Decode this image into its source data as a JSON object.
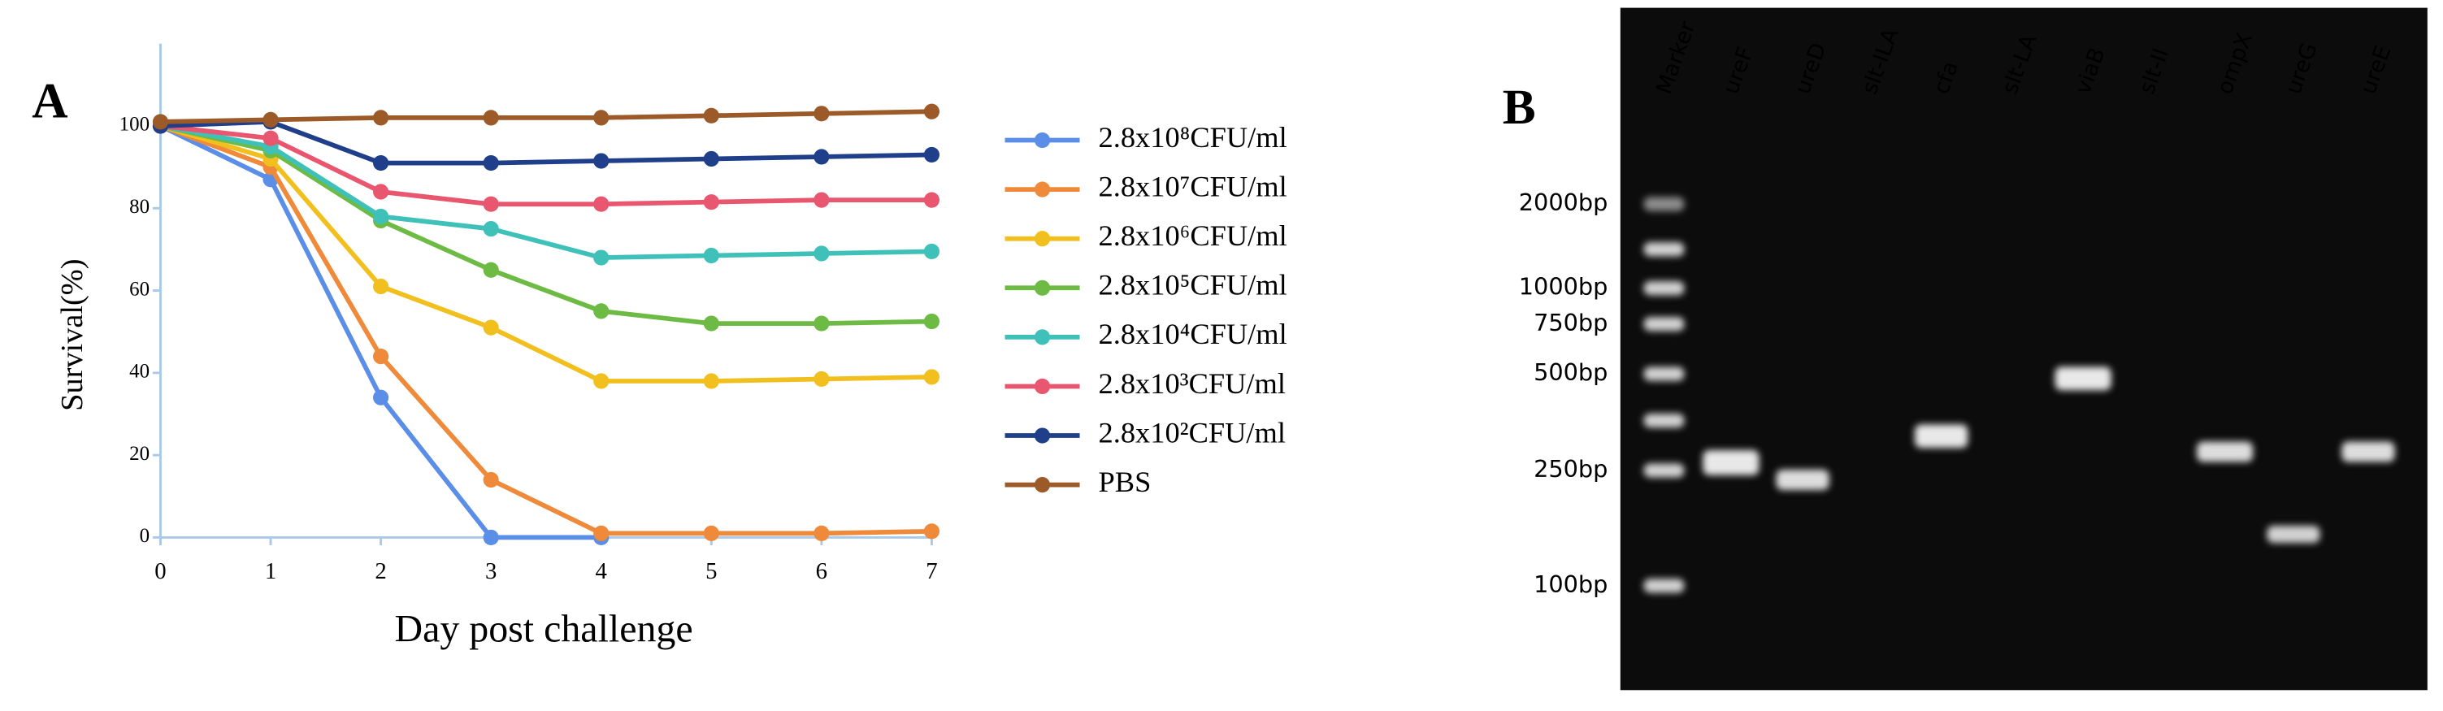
{
  "chart_data": {
    "type": "line",
    "panel_label": "A",
    "x_label": "Day post challenge",
    "y_label": "Survival(%)",
    "x": [
      0,
      1,
      2,
      3,
      4,
      5,
      6,
      7
    ],
    "xlim": [
      0,
      7
    ],
    "xticks": [
      0,
      1,
      2,
      3,
      4,
      5,
      6,
      7
    ],
    "ylim": [
      0,
      120
    ],
    "yticks": [
      0,
      20,
      40,
      60,
      80,
      100
    ],
    "series": [
      {
        "name": "2.8x10⁸CFU/ml",
        "color": "#5b8ee6",
        "values": [
          100,
          87,
          34,
          0,
          0,
          null,
          null,
          null
        ]
      },
      {
        "name": "2.8x10⁷CFU/ml",
        "color": "#ee8a3a",
        "values": [
          100,
          90,
          44,
          14,
          1,
          1,
          1,
          1.5
        ]
      },
      {
        "name": "2.8x10⁶CFU/ml",
        "color": "#f2c01e",
        "values": [
          100,
          92,
          61,
          51,
          38,
          38,
          38.5,
          39
        ]
      },
      {
        "name": "2.8x10⁵CFU/ml",
        "color": "#6dbb45",
        "values": [
          100,
          94,
          77,
          65,
          55,
          52,
          52,
          52.5
        ]
      },
      {
        "name": "2.8x10⁴CFU/ml",
        "color": "#3fc1b9",
        "values": [
          100,
          95,
          78,
          75,
          68,
          68.5,
          69,
          69.5
        ]
      },
      {
        "name": "2.8x10³CFU/ml",
        "color": "#e8566f",
        "values": [
          100,
          97,
          84,
          81,
          81,
          81.5,
          82,
          82
        ]
      },
      {
        "name": "2.8x10²CFU/ml",
        "color": "#1f3f8a",
        "values": [
          100,
          101,
          91,
          91,
          91.5,
          92,
          92.5,
          93
        ]
      },
      {
        "name": "PBS",
        "color": "#9c5a28",
        "values": [
          101,
          101.5,
          102,
          102,
          102,
          102.5,
          103,
          103.5
        ]
      }
    ]
  },
  "gel": {
    "panel_label": "B",
    "lanes": [
      "Marker",
      "ureF",
      "ureD",
      "slt-ILA",
      "cfa",
      "slt-LA",
      "viaB",
      "slt-II",
      "ompX",
      "ureG",
      "ureE"
    ],
    "size_labels": [
      "2000bp",
      "1000bp",
      "750bp",
      "500bp",
      "250bp",
      "100bp"
    ]
  }
}
